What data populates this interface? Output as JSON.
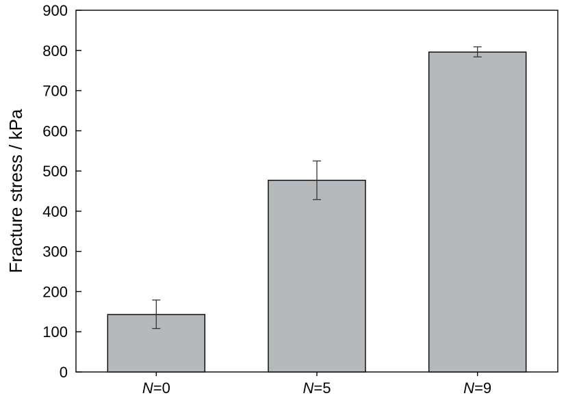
{
  "chart_data": {
    "type": "bar",
    "ylabel": "Fracture stress / kPa",
    "xlabel": "",
    "ylim": [
      0,
      900
    ],
    "yticks": [
      0,
      100,
      200,
      300,
      400,
      500,
      600,
      700,
      800,
      900
    ],
    "grid": false,
    "categories": [
      {
        "var": "N",
        "rest": "=0"
      },
      {
        "var": "N",
        "rest": "=5"
      },
      {
        "var": "N",
        "rest": "=9"
      }
    ],
    "values": [
      143,
      477,
      796
    ],
    "error_low": [
      108,
      429,
      784
    ],
    "error_high": [
      179,
      525,
      809
    ],
    "colors": {
      "bar_fill": "#b6b9bb",
      "bar_stroke": "#000000",
      "axis": "#000000",
      "error_bar": "#333333"
    }
  }
}
